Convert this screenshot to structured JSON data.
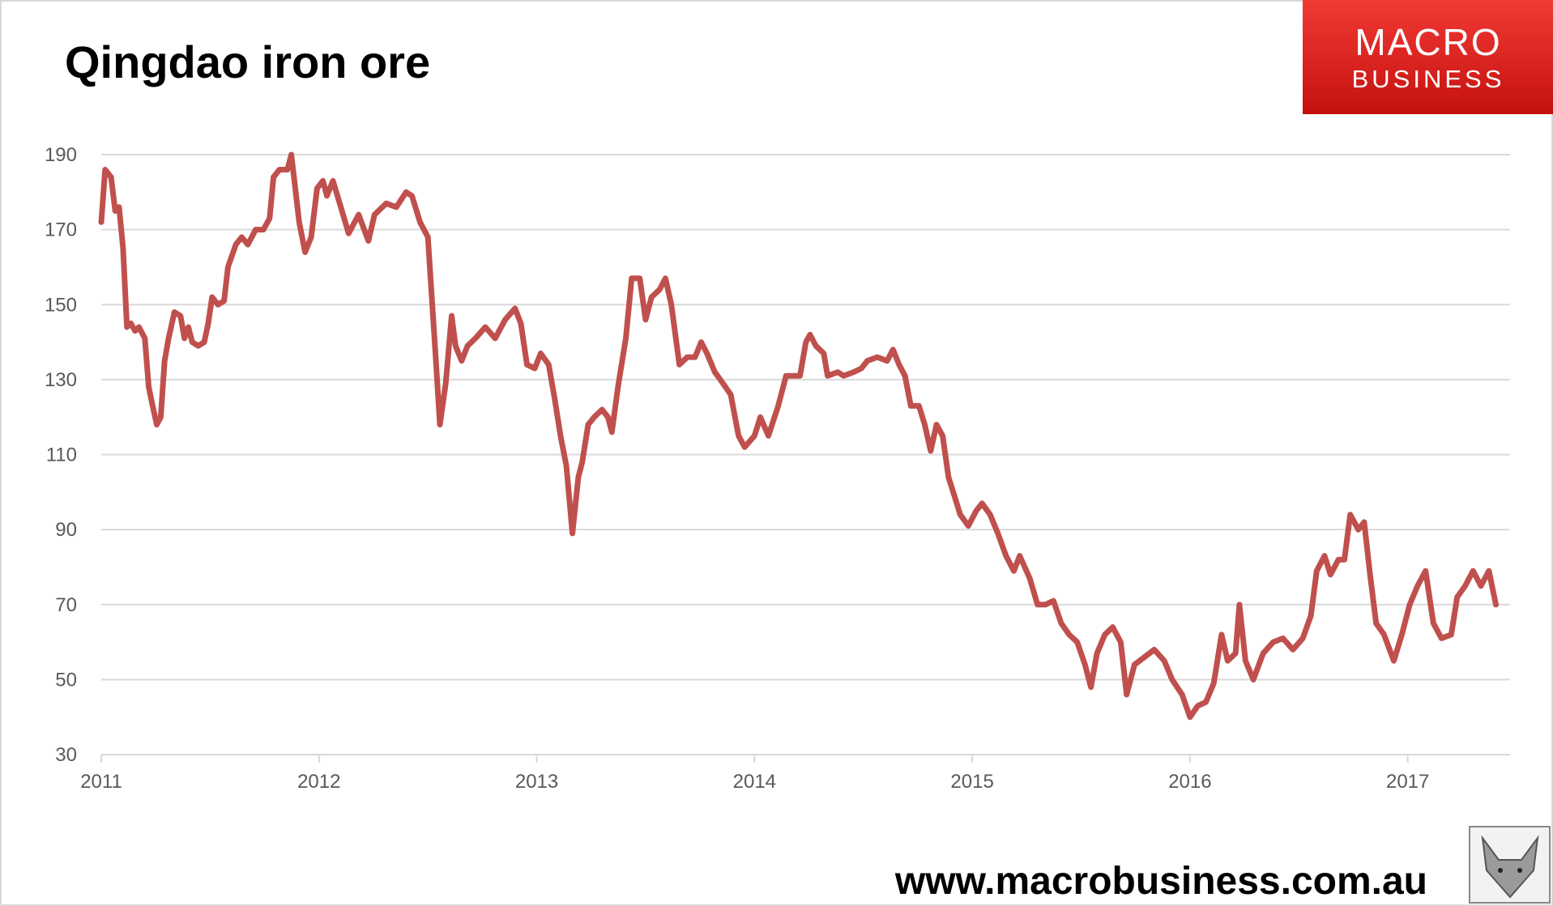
{
  "chart_data": {
    "type": "line",
    "title": "Qingdao iron ore",
    "x": [
      2011.0,
      2011.018,
      2011.045,
      2011.064,
      2011.082,
      2011.1,
      2011.118,
      2011.136,
      2011.155,
      2011.173,
      2011.2,
      2011.218,
      2011.236,
      2011.255,
      2011.273,
      2011.291,
      2011.309,
      2011.336,
      2011.364,
      2011.382,
      2011.4,
      2011.418,
      2011.445,
      2011.473,
      2011.491,
      2011.509,
      2011.536,
      2011.564,
      2011.582,
      2011.618,
      2011.645,
      2011.673,
      2011.709,
      2011.745,
      2011.773,
      2011.791,
      2011.818,
      2011.855,
      2011.873,
      2011.891,
      2011.909,
      2011.936,
      2011.964,
      2011.991,
      2012.018,
      2012.036,
      2012.064,
      2012.1,
      2012.136,
      2012.182,
      2012.227,
      2012.255,
      2012.309,
      2012.355,
      2012.4,
      2012.427,
      2012.464,
      2012.5,
      2012.518,
      2012.536,
      2012.555,
      2012.582,
      2012.609,
      2012.627,
      2012.655,
      2012.682,
      2012.718,
      2012.764,
      2012.809,
      2012.855,
      2012.9,
      2012.927,
      2012.955,
      2012.991,
      2013.018,
      2013.055,
      2013.082,
      2013.109,
      2013.136,
      2013.164,
      2013.191,
      2013.209,
      2013.236,
      2013.264,
      2013.3,
      2013.327,
      2013.345,
      2013.373,
      2013.409,
      2013.436,
      2013.473,
      2013.5,
      2013.527,
      2013.564,
      2013.591,
      2013.618,
      2013.655,
      2013.691,
      2013.727,
      2013.755,
      2013.782,
      2013.818,
      2013.855,
      2013.891,
      2013.927,
      2013.955,
      2014.0,
      2014.027,
      2014.064,
      2014.109,
      2014.145,
      2014.182,
      2014.209,
      2014.236,
      2014.255,
      2014.282,
      2014.318,
      2014.336,
      2014.382,
      2014.409,
      2014.455,
      2014.491,
      2014.518,
      2014.564,
      2014.609,
      2014.636,
      2014.664,
      2014.691,
      2014.718,
      2014.755,
      2014.782,
      2014.809,
      2014.836,
      2014.864,
      2014.891,
      2014.918,
      2014.945,
      2014.982,
      2015.018,
      2015.045,
      2015.082,
      2015.118,
      2015.155,
      2015.191,
      2015.218,
      2015.264,
      2015.3,
      2015.336,
      2015.373,
      2015.409,
      2015.445,
      2015.482,
      2015.518,
      2015.545,
      2015.573,
      2015.609,
      2015.645,
      2015.682,
      2015.709,
      2015.745,
      2015.791,
      2015.836,
      2015.882,
      2015.918,
      2015.964,
      2016.0,
      2016.036,
      2016.073,
      2016.109,
      2016.145,
      2016.173,
      2016.209,
      2016.227,
      2016.255,
      2016.291,
      2016.336,
      2016.382,
      2016.427,
      2016.473,
      2016.518,
      2016.555,
      2016.582,
      2016.618,
      2016.645,
      2016.682,
      2016.709,
      2016.736,
      2016.773,
      2016.8,
      2016.827,
      2016.855,
      2016.891,
      2016.936,
      2016.973,
      2017.009,
      2017.045,
      2017.082,
      2017.118,
      2017.155,
      2017.2,
      2017.227,
      2017.264,
      2017.3,
      2017.336,
      2017.373,
      2017.405
    ],
    "series": [
      {
        "name": "Qingdao iron ore",
        "color": "#c0504d",
        "values": [
          172,
          186,
          184,
          175,
          176,
          165,
          144,
          145,
          143,
          144,
          141,
          128,
          123,
          118,
          120,
          135,
          141,
          148,
          147,
          141,
          144,
          140,
          139,
          140,
          145,
          152,
          150,
          151,
          160,
          166,
          168,
          166,
          170,
          170,
          173,
          184,
          186,
          186,
          190,
          181,
          172,
          164,
          168,
          181,
          183,
          179,
          183,
          176,
          169,
          174,
          167,
          174,
          177,
          176,
          180,
          179,
          172,
          168,
          152,
          136,
          118,
          129,
          147,
          139,
          135,
          139,
          141,
          144,
          141,
          146,
          149,
          145,
          134,
          133,
          137,
          134,
          125,
          115,
          107,
          89,
          104,
          108,
          118,
          120,
          122,
          120,
          116,
          128,
          141,
          157,
          157,
          146,
          152,
          154,
          157,
          150,
          134,
          136,
          136,
          140,
          137,
          132,
          129,
          126,
          115,
          112,
          115,
          120,
          115,
          123,
          131,
          131,
          131,
          140,
          142,
          139,
          137,
          131,
          132,
          131,
          132,
          133,
          135,
          136,
          135,
          138,
          134,
          131,
          123,
          123,
          118,
          111,
          118,
          115,
          104,
          99,
          94,
          91,
          95,
          97,
          94,
          89,
          83,
          79,
          83,
          77,
          70,
          70,
          71,
          65,
          62,
          60,
          54,
          48,
          57,
          62,
          64,
          60,
          46,
          54,
          56,
          58,
          55,
          50,
          46,
          40,
          43,
          44,
          49,
          62,
          55,
          57,
          70,
          55,
          50,
          57,
          60,
          61,
          58,
          61,
          67,
          79,
          83,
          78,
          82,
          82,
          94,
          90,
          92,
          78,
          65,
          62,
          55,
          62,
          70,
          75,
          79,
          65,
          61,
          62,
          72,
          75,
          79,
          75,
          79,
          70
        ]
      }
    ],
    "xlim": [
      2011,
      2017.47
    ],
    "xticks": [
      2011,
      2012,
      2013,
      2014,
      2015,
      2016,
      2017
    ],
    "ylim": [
      30,
      190
    ],
    "yticks": [
      30,
      50,
      70,
      90,
      110,
      130,
      150,
      170,
      190
    ],
    "grid": true
  },
  "branding": {
    "logo": [
      "MACRO",
      "BUSINESS"
    ],
    "website": "www.macrobusiness.com.au"
  }
}
